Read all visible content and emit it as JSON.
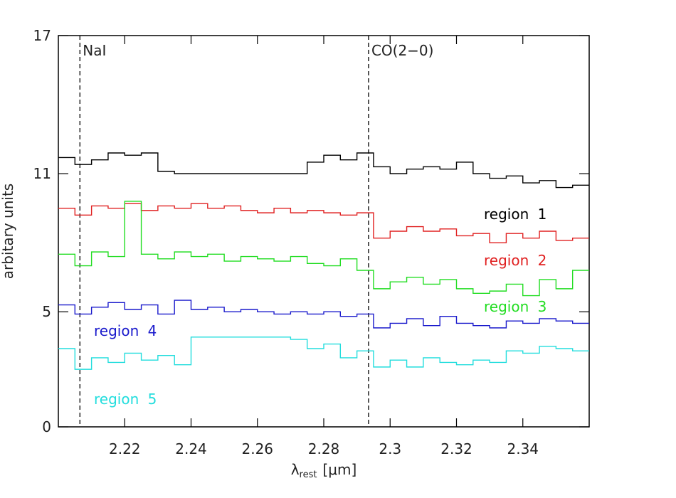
{
  "chart_data": {
    "type": "step",
    "x_label": "λ",
    "x_label_sub": "rest",
    "x_label_unit": "[μm]",
    "y_label": "arbitary units",
    "xlim": [
      2.2,
      2.36
    ],
    "xticks": [
      2.22,
      2.24,
      2.26,
      2.28,
      2.3,
      2.32,
      2.34
    ],
    "ylim": [
      0,
      17
    ],
    "yticks": [
      0,
      5,
      11,
      17
    ],
    "lines": [
      {
        "x": 2.2065,
        "label": "NaI"
      },
      {
        "x": 2.2935,
        "label": "CO(2−0)"
      }
    ],
    "x": [
      2.2,
      2.205,
      2.21,
      2.215,
      2.22,
      2.225,
      2.23,
      2.235,
      2.24,
      2.245,
      2.25,
      2.255,
      2.26,
      2.265,
      2.27,
      2.275,
      2.28,
      2.285,
      2.29,
      2.295,
      2.3,
      2.305,
      2.31,
      2.315,
      2.32,
      2.325,
      2.33,
      2.335,
      2.34,
      2.345,
      2.35,
      2.355
    ],
    "series": [
      {
        "name": "region 1",
        "color": "#000000",
        "values": [
          11.7,
          11.4,
          11.6,
          11.9,
          11.8,
          11.9,
          11.1,
          11.0,
          11.0,
          11.0,
          11.0,
          11.0,
          11.0,
          11.0,
          11.0,
          11.5,
          11.8,
          11.6,
          11.9,
          11.3,
          11.0,
          11.2,
          11.3,
          11.2,
          11.5,
          11.0,
          10.8,
          10.9,
          10.6,
          10.7,
          10.4,
          10.5
        ]
      },
      {
        "name": "region 2",
        "color": "#e02020",
        "values": [
          9.5,
          9.2,
          9.6,
          9.5,
          9.7,
          9.4,
          9.6,
          9.5,
          9.7,
          9.5,
          9.6,
          9.4,
          9.3,
          9.5,
          9.3,
          9.4,
          9.3,
          9.2,
          9.3,
          8.2,
          8.5,
          8.7,
          8.5,
          8.6,
          8.3,
          8.4,
          8.0,
          8.4,
          8.2,
          8.5,
          8.1,
          8.2
        ]
      },
      {
        "name": "region 3",
        "color": "#22dd22",
        "values": [
          7.5,
          7.0,
          7.6,
          7.4,
          9.8,
          7.5,
          7.3,
          7.6,
          7.4,
          7.5,
          7.2,
          7.4,
          7.3,
          7.2,
          7.4,
          7.1,
          7.0,
          7.3,
          6.8,
          6.0,
          6.3,
          6.5,
          6.2,
          6.4,
          6.0,
          5.8,
          5.9,
          6.2,
          5.7,
          6.4,
          6.0,
          6.8
        ]
      },
      {
        "name": "region 4",
        "color": "#1a1acc",
        "values": [
          5.3,
          4.9,
          5.2,
          5.4,
          5.1,
          5.3,
          4.9,
          5.5,
          5.1,
          5.2,
          5.0,
          5.1,
          5.0,
          4.9,
          5.0,
          4.9,
          5.0,
          4.8,
          4.9,
          4.3,
          4.5,
          4.7,
          4.4,
          4.8,
          4.5,
          4.4,
          4.3,
          4.6,
          4.5,
          4.7,
          4.6,
          4.5
        ]
      },
      {
        "name": "region 5",
        "color": "#22dddd",
        "values": [
          3.4,
          2.5,
          3.0,
          2.8,
          3.2,
          2.9,
          3.1,
          2.7,
          3.9,
          3.9,
          3.9,
          3.9,
          3.9,
          3.9,
          3.8,
          3.4,
          3.6,
          3.0,
          3.3,
          2.6,
          2.9,
          2.6,
          3.0,
          2.8,
          2.7,
          2.9,
          2.8,
          3.3,
          3.2,
          3.5,
          3.4,
          3.3
        ]
      }
    ]
  }
}
